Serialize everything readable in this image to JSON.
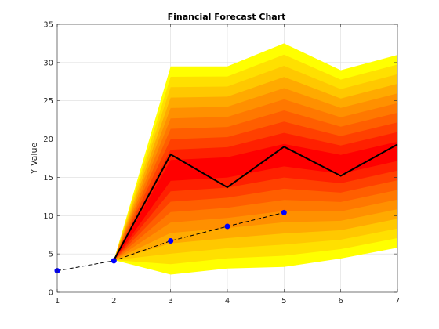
{
  "chart_data": {
    "type": "area",
    "title": "Financial Forecast Chart",
    "xlabel": "",
    "ylabel": "Y Value",
    "xlim": [
      1,
      7
    ],
    "ylim": [
      0,
      35
    ],
    "xticks": [
      "1",
      "2",
      "3",
      "4",
      "5",
      "6",
      "7"
    ],
    "yticks": [
      "0",
      "5",
      "10",
      "15",
      "20",
      "25",
      "30",
      "35"
    ],
    "grid": true,
    "fan_x": [
      2,
      3,
      4,
      5,
      6,
      7
    ],
    "fan_upper": [
      4.2,
      29.5,
      29.5,
      32.5,
      29.0,
      31.0
    ],
    "fan_lower": [
      4.2,
      2.3,
      3.1,
      3.3,
      4.4,
      5.8
    ],
    "fan_colors": [
      "#ffff00",
      "#ffe000",
      "#ffc800",
      "#ffaa00",
      "#ff9000",
      "#ff7800",
      "#ff5e00",
      "#ff4000",
      "#ff2000",
      "#ff0000"
    ],
    "series": [
      {
        "name": "",
        "style": "solid-black",
        "x": [
          2,
          3,
          4,
          5,
          6,
          7
        ],
        "y": [
          4.2,
          18.0,
          13.7,
          19.0,
          15.2,
          19.3
        ]
      },
      {
        "name": "",
        "style": "dashed-black-blue-markers",
        "x": [
          1,
          2,
          3,
          4,
          5
        ],
        "y": [
          2.8,
          4.1,
          6.7,
          8.6,
          10.4
        ]
      }
    ]
  }
}
